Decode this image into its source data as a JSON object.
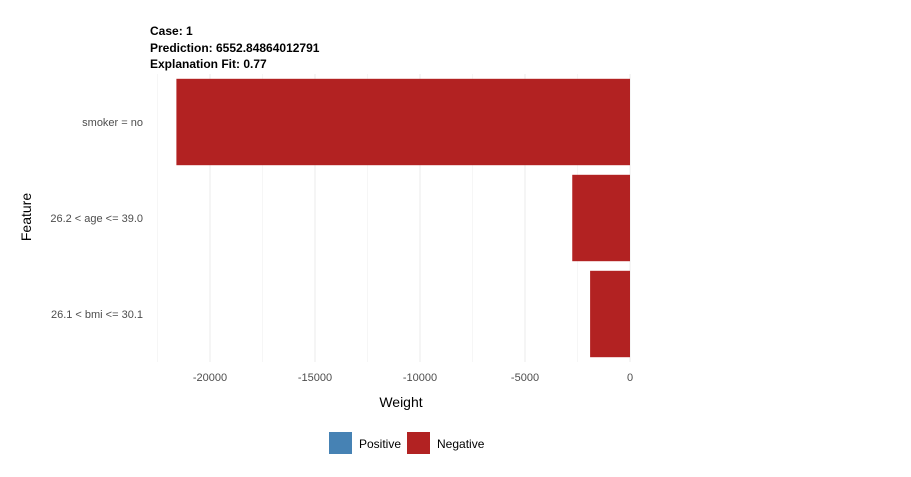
{
  "header": {
    "case": "Case: 1",
    "prediction": "Prediction: 6552.84864012791",
    "fit": "Explanation Fit: 0.77"
  },
  "chart_data": {
    "type": "bar",
    "orientation": "horizontal",
    "categories": [
      "smoker = no",
      "26.2 < age <= 39.0",
      "26.1 < bmi <= 30.1"
    ],
    "values": [
      -21600,
      -2750,
      -1900
    ],
    "series_type": [
      "Negative",
      "Negative",
      "Negative"
    ],
    "xlabel": "Weight",
    "ylabel": "Feature",
    "xlim": [
      -22600,
      0
    ],
    "xticks": [
      -20000,
      -15000,
      -10000,
      -5000,
      0
    ],
    "xtick_labels": [
      "-20000",
      "-15000",
      "-10000",
      "-5000",
      "0"
    ],
    "grid": true,
    "legend": {
      "placement": "bottom",
      "items": [
        {
          "label": "Positive",
          "color": "#4682B4"
        },
        {
          "label": "Negative",
          "color": "#B22222"
        }
      ]
    }
  }
}
